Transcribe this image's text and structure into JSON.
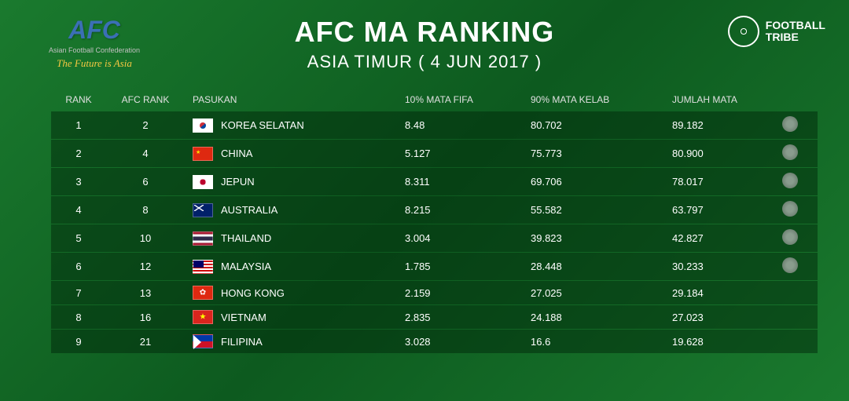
{
  "header": {
    "afc_logo_text": "AFC",
    "afc_subtitle": "Asian Football Confederation",
    "afc_tagline": "The Future is Asia",
    "title": "AFC MA RANKING",
    "subtitle": "ASIA TIMUR ( 4 JUN 2017 )",
    "ft_line1": "FOOTBALL",
    "ft_line2": "TRIBE"
  },
  "columns": {
    "rank": "RANK",
    "afc_rank": "AFC RANK",
    "pasukan": "PASUKAN",
    "fifa": "10% MATA FIFA",
    "kelab": "90% MATA KELAB",
    "total": "JUMLAH MATA"
  },
  "colors": {
    "bg_gradient_start": "#1a7a2e",
    "bg_gradient_mid": "#0d5a1f",
    "row_bg": "rgba(0,40,10,0.5)",
    "text": "#ffffff",
    "header_text": "#e0e0e0",
    "afc_logo": "#3b6fb5",
    "tagline": "#f5c842"
  },
  "flags": {
    "korea": "linear-gradient(to bottom, #fff 33%, #fff 33%, #fff 100%)",
    "china": "linear-gradient(#de2910,#de2910)",
    "japan": "radial-gradient(circle at 50% 50%, #bc002d 25%, #fff 26%)",
    "australia": "linear-gradient(#012169,#012169)",
    "thailand": "linear-gradient(to bottom,#a51931 16%,#f4f5f8 16% 33%,#2d2a4a 33% 66%,#f4f5f8 66% 83%,#a51931 83%)",
    "malaysia": "repeating-linear-gradient(#cc0001 0 2px,#fff 2px 4px)",
    "hongkong": "linear-gradient(#de2910,#de2910)",
    "vietnam": "linear-gradient(#da251d,#da251d)",
    "filipina": "linear-gradient(to bottom,#0038a8 50%,#ce1126 50%)"
  },
  "rows": [
    {
      "rank": "1",
      "afc": "2",
      "flag": "korea",
      "team": "KOREA SELATAN",
      "fifa": "8.48",
      "kelab": "80.702",
      "total": "89.182",
      "badge": true
    },
    {
      "rank": "2",
      "afc": "4",
      "flag": "china",
      "team": "CHINA",
      "fifa": "5.127",
      "kelab": "75.773",
      "total": "80.900",
      "badge": true
    },
    {
      "rank": "3",
      "afc": "6",
      "flag": "japan",
      "team": "JEPUN",
      "fifa": "8.311",
      "kelab": "69.706",
      "total": "78.017",
      "badge": true
    },
    {
      "rank": "4",
      "afc": "8",
      "flag": "australia",
      "team": "AUSTRALIA",
      "fifa": "8.215",
      "kelab": "55.582",
      "total": "63.797",
      "badge": true
    },
    {
      "rank": "5",
      "afc": "10",
      "flag": "thailand",
      "team": "THAILAND",
      "fifa": "3.004",
      "kelab": "39.823",
      "total": "42.827",
      "badge": true
    },
    {
      "rank": "6",
      "afc": "12",
      "flag": "malaysia",
      "team": "MALAYSIA",
      "fifa": "1.785",
      "kelab": "28.448",
      "total": "30.233",
      "badge": true
    },
    {
      "rank": "7",
      "afc": "13",
      "flag": "hongkong",
      "team": "HONG KONG",
      "fifa": "2.159",
      "kelab": "27.025",
      "total": "29.184",
      "badge": false
    },
    {
      "rank": "8",
      "afc": "16",
      "flag": "vietnam",
      "team": "VIETNAM",
      "fifa": "2.835",
      "kelab": "24.188",
      "total": "27.023",
      "badge": false
    },
    {
      "rank": "9",
      "afc": "21",
      "flag": "filipina",
      "team": "FILIPINA",
      "fifa": "3.028",
      "kelab": "16.6",
      "total": "19.628",
      "badge": false
    }
  ]
}
